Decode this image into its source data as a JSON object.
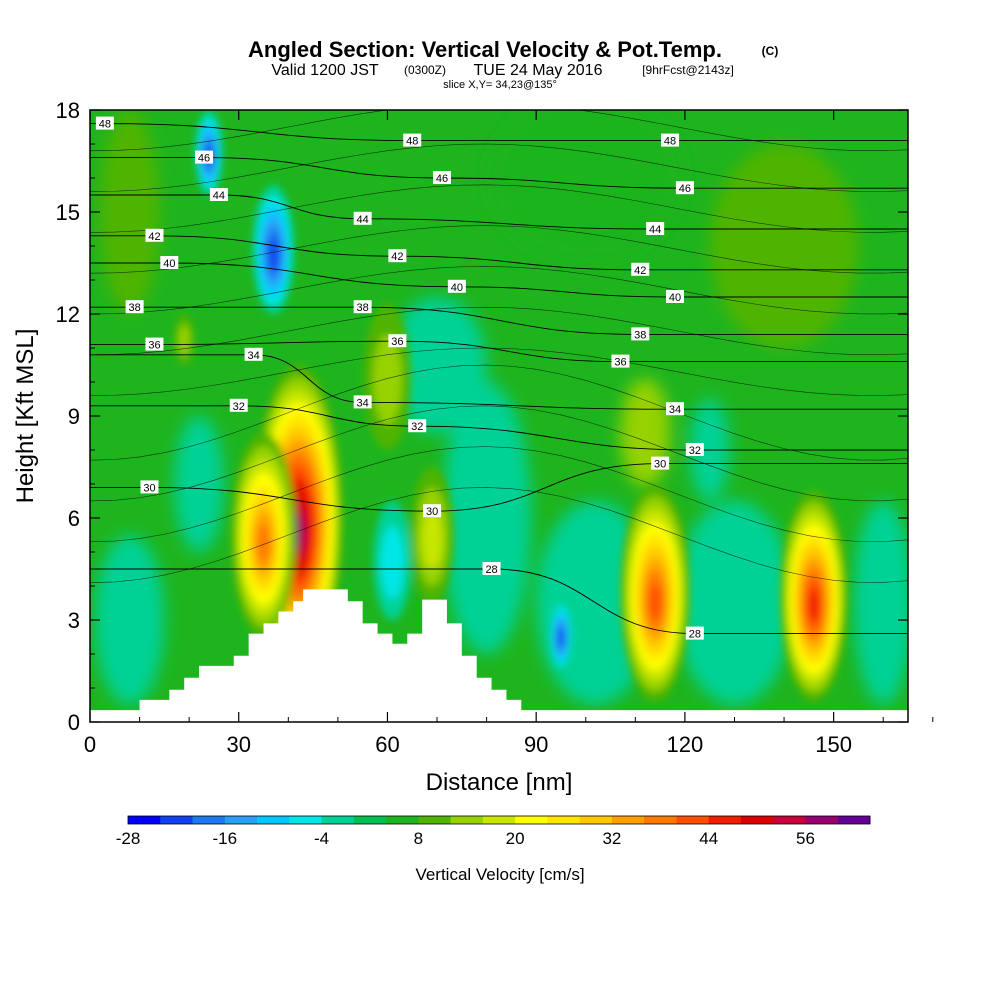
{
  "chart_data": {
    "type": "heatmap",
    "title": "Angled Section: Vertical Velocity & Pot.Temp.",
    "title_unit": "(C)",
    "subtitle_main": "Valid 1200 JST",
    "subtitle_z": "(0300Z)",
    "subtitle_date": "TUE 24 May 2016",
    "subtitle_fcst": "[9hrFcst@2143z]",
    "slice": "slice X,Y= 34,23@135°",
    "xlabel": "Distance [nm]",
    "ylabel": "Height [Kft MSL]",
    "xlim": [
      0,
      165
    ],
    "ylim": [
      0,
      18
    ],
    "x_ticks": [
      "0",
      "30",
      "60",
      "90",
      "120",
      "150"
    ],
    "y_ticks": [
      "0",
      "3",
      "6",
      "9",
      "12",
      "15",
      "18"
    ],
    "colorbar": {
      "label": "Vertical Velocity [cm/s]",
      "tick_labels": [
        "-28",
        "-16",
        "-4",
        "8",
        "20",
        "32",
        "44",
        "56"
      ],
      "levels": [
        -28,
        -24,
        -20,
        -16,
        -12,
        -8,
        -4,
        0,
        4,
        8,
        12,
        16,
        20,
        24,
        28,
        32,
        36,
        40,
        44,
        48,
        52,
        56,
        60
      ],
      "colors": [
        "#0000ff",
        "#1040f0",
        "#1e78f0",
        "#2aa0f5",
        "#00c8ff",
        "#00e6e6",
        "#00d296",
        "#00c050",
        "#1eb41e",
        "#50b400",
        "#96d200",
        "#c8e600",
        "#ffff00",
        "#ffe600",
        "#ffc800",
        "#ffa000",
        "#ff7800",
        "#ff5000",
        "#f01e00",
        "#dc0000",
        "#c8003c",
        "#96006e",
        "#640096"
      ]
    },
    "features": [
      {
        "kind": "updraft",
        "x": 42,
        "y_top": 10.5,
        "y_bottom": 1.5,
        "peak_cm_s": 56
      },
      {
        "kind": "updraft",
        "x": 35,
        "y_top": 8.5,
        "y_bottom": 2.5,
        "peak_cm_s": 36
      },
      {
        "kind": "updraft",
        "x": 114,
        "y_top": 7.0,
        "y_bottom": 0.6,
        "peak_cm_s": 40
      },
      {
        "kind": "updraft",
        "x": 146,
        "y_top": 6.8,
        "y_bottom": 0.6,
        "peak_cm_s": 44
      },
      {
        "kind": "updraft",
        "x": 69,
        "y_top": 7.5,
        "y_bottom": 3.5,
        "peak_cm_s": 16
      },
      {
        "kind": "updraft",
        "x": 60,
        "y_top": 12.3,
        "y_bottom": 8.0,
        "peak_cm_s": 12
      },
      {
        "kind": "updraft",
        "x": 19,
        "y_top": 12.0,
        "y_bottom": 10.5,
        "peak_cm_s": 12
      },
      {
        "kind": "downdraft",
        "x": 37,
        "y_top": 15.8,
        "y_bottom": 12.0,
        "peak_cm_s": -24
      },
      {
        "kind": "downdraft",
        "x": 24,
        "y_top": 18.0,
        "y_bottom": 15.5,
        "peak_cm_s": -24
      },
      {
        "kind": "downdraft",
        "x": 95,
        "y_top": 3.6,
        "y_bottom": 1.5,
        "peak_cm_s": -24
      },
      {
        "kind": "downdraft",
        "x": 61,
        "y_top": 6.5,
        "y_bottom": 3.0,
        "peak_cm_s": -8
      }
    ],
    "terrain": [
      [
        10,
        0.0
      ],
      [
        10,
        0.65
      ],
      [
        16,
        0.65
      ],
      [
        16,
        0.95
      ],
      [
        19,
        0.95
      ],
      [
        19,
        1.3
      ],
      [
        22,
        1.3
      ],
      [
        22,
        1.65
      ],
      [
        29,
        1.65
      ],
      [
        29,
        1.95
      ],
      [
        32,
        1.95
      ],
      [
        32,
        2.6
      ],
      [
        35,
        2.6
      ],
      [
        35,
        2.9
      ],
      [
        38,
        2.9
      ],
      [
        38,
        3.25
      ],
      [
        41,
        3.25
      ],
      [
        41,
        3.55
      ],
      [
        43,
        3.55
      ],
      [
        43,
        3.9
      ],
      [
        52,
        3.9
      ],
      [
        52,
        3.55
      ],
      [
        55,
        3.55
      ],
      [
        55,
        2.9
      ],
      [
        58,
        2.9
      ],
      [
        58,
        2.6
      ],
      [
        61,
        2.6
      ],
      [
        61,
        2.3
      ],
      [
        64,
        2.3
      ],
      [
        64,
        2.6
      ],
      [
        67,
        2.6
      ],
      [
        67,
        3.6
      ],
      [
        72,
        3.6
      ],
      [
        72,
        2.9
      ],
      [
        75,
        2.9
      ],
      [
        75,
        1.95
      ],
      [
        78,
        1.95
      ],
      [
        78,
        1.3
      ],
      [
        81,
        1.3
      ],
      [
        81,
        0.95
      ],
      [
        84,
        0.95
      ],
      [
        84,
        0.65
      ],
      [
        87,
        0.65
      ],
      [
        87,
        0.3
      ],
      [
        89,
        0.3
      ],
      [
        89,
        0.0
      ]
    ],
    "isotherm_labels": [
      {
        "text": "48",
        "x": 3,
        "y": 17.6
      },
      {
        "text": "48",
        "x": 65,
        "y": 17.1
      },
      {
        "text": "48",
        "x": 117,
        "y": 17.1
      },
      {
        "text": "46",
        "x": 23,
        "y": 16.6
      },
      {
        "text": "46",
        "x": 71,
        "y": 16.0
      },
      {
        "text": "46",
        "x": 120,
        "y": 15.7
      },
      {
        "text": "44",
        "x": 26,
        "y": 15.5
      },
      {
        "text": "44",
        "x": 55,
        "y": 14.8
      },
      {
        "text": "44",
        "x": 114,
        "y": 14.5
      },
      {
        "text": "42",
        "x": 13,
        "y": 14.3
      },
      {
        "text": "42",
        "x": 62,
        "y": 13.7
      },
      {
        "text": "42",
        "x": 111,
        "y": 13.3
      },
      {
        "text": "40",
        "x": 16,
        "y": 13.5
      },
      {
        "text": "40",
        "x": 74,
        "y": 12.8
      },
      {
        "text": "40",
        "x": 118,
        "y": 12.5
      },
      {
        "text": "38",
        "x": 9,
        "y": 12.2
      },
      {
        "text": "38",
        "x": 55,
        "y": 12.2
      },
      {
        "text": "38",
        "x": 111,
        "y": 11.4
      },
      {
        "text": "36",
        "x": 13,
        "y": 11.1
      },
      {
        "text": "36",
        "x": 62,
        "y": 11.2
      },
      {
        "text": "36",
        "x": 107,
        "y": 10.6
      },
      {
        "text": "34",
        "x": 33,
        "y": 10.8
      },
      {
        "text": "34",
        "x": 55,
        "y": 9.4
      },
      {
        "text": "34",
        "x": 118,
        "y": 9.2
      },
      {
        "text": "32",
        "x": 30,
        "y": 9.3
      },
      {
        "text": "32",
        "x": 66,
        "y": 8.7
      },
      {
        "text": "32",
        "x": 122,
        "y": 8.0
      },
      {
        "text": "30",
        "x": 12,
        "y": 6.9
      },
      {
        "text": "30",
        "x": 69,
        "y": 6.2
      },
      {
        "text": "30",
        "x": 115,
        "y": 7.6
      },
      {
        "text": "28",
        "x": 81,
        "y": 4.5
      },
      {
        "text": "28",
        "x": 122,
        "y": 2.6
      }
    ]
  }
}
